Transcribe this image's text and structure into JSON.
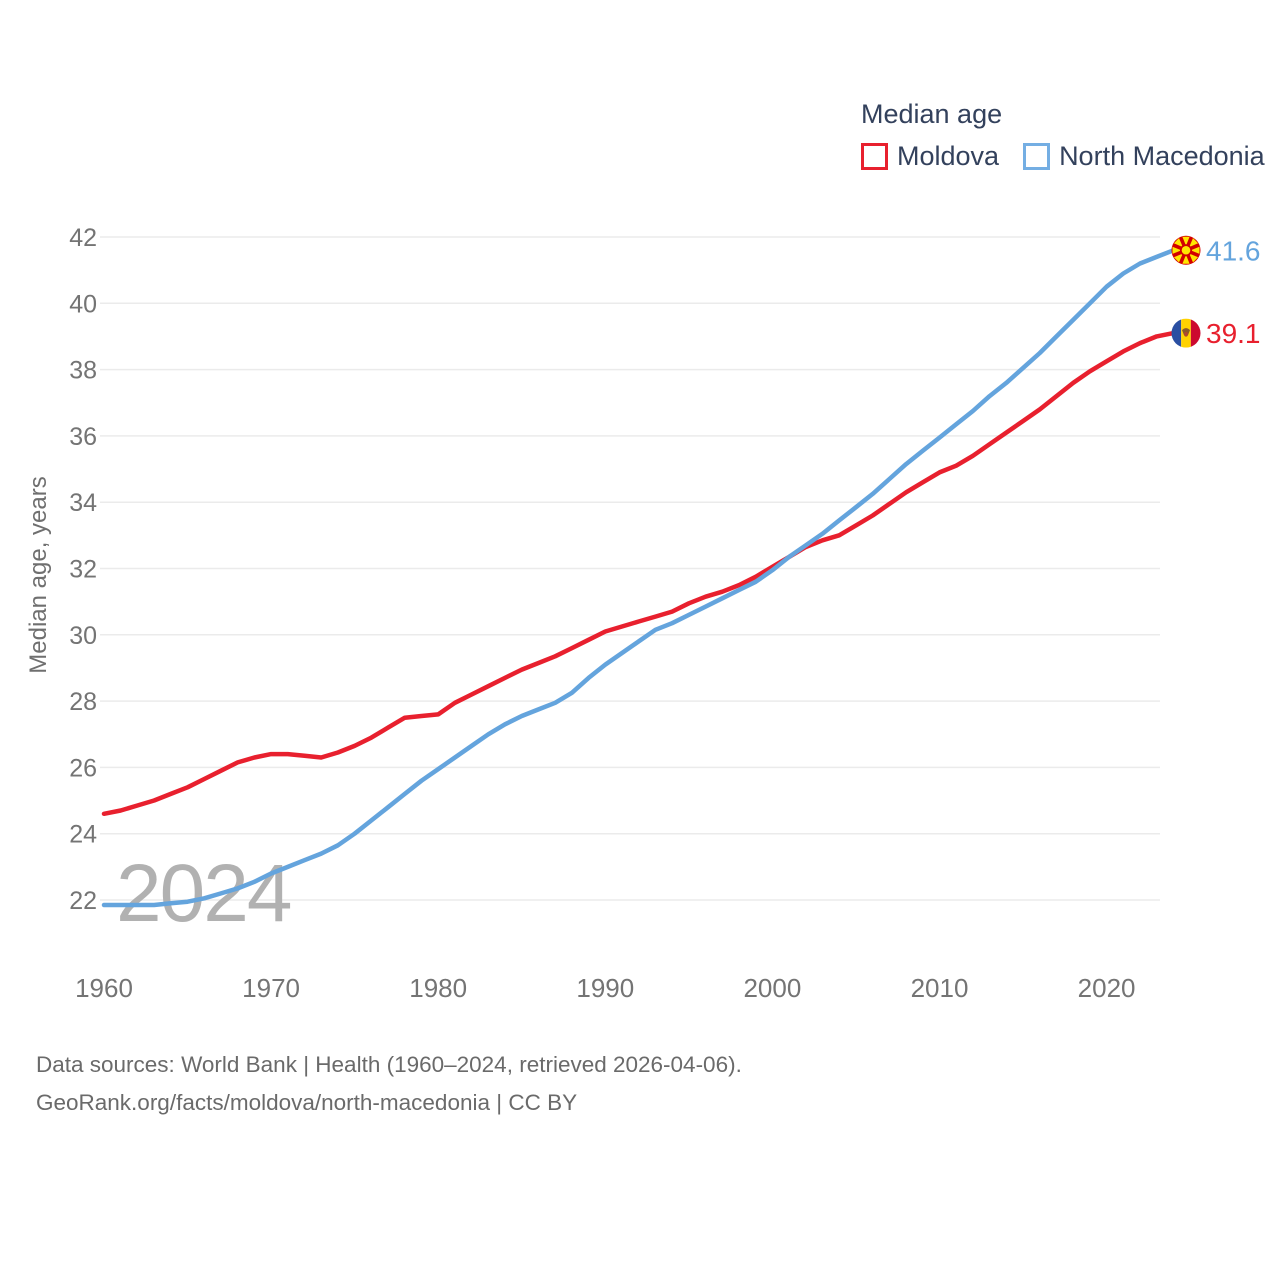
{
  "legend": {
    "title": "Median age",
    "series": [
      {
        "label": "Moldova",
        "color": "#e8202e"
      },
      {
        "label": "North Macedonia",
        "color": "#74aee3"
      }
    ]
  },
  "watermark": "2024",
  "end_labels": [
    {
      "series": "North Macedonia",
      "value": "41.6",
      "color": "#64a4dd",
      "flag": "north-macedonia-flag-icon"
    },
    {
      "series": "Moldova",
      "value": "39.1",
      "color": "#e8202e",
      "flag": "moldova-flag-icon"
    }
  ],
  "footer": {
    "line1": "Data sources: World Bank | Health (1960–2024, retrieved 2026-04-06).",
    "line2": "GeoRank.org/facts/moldova/north-macedonia | CC BY"
  },
  "colors": {
    "grid": "#ebebeb",
    "tick_text": "#747474",
    "axis_title_text": "#6f6f6f",
    "watermark": "#b1b1b1",
    "footer_text": "#6a6a6a",
    "legend_text": "#33415c"
  },
  "chart_data": {
    "type": "line",
    "title": "Median age",
    "xlabel": "",
    "ylabel": "Median age, years",
    "ylim": [
      21,
      43
    ],
    "yticks": [
      22,
      24,
      26,
      28,
      30,
      32,
      34,
      36,
      38,
      40,
      42
    ],
    "xticks": [
      1960,
      1970,
      1980,
      1990,
      2000,
      2010,
      2020
    ],
    "grid": true,
    "legend_position": "top-right",
    "x": [
      1960,
      1961,
      1962,
      1963,
      1964,
      1965,
      1966,
      1967,
      1968,
      1969,
      1970,
      1971,
      1972,
      1973,
      1974,
      1975,
      1976,
      1977,
      1978,
      1979,
      1980,
      1981,
      1982,
      1983,
      1984,
      1985,
      1986,
      1987,
      1988,
      1989,
      1990,
      1991,
      1992,
      1993,
      1994,
      1995,
      1996,
      1997,
      1998,
      1999,
      2000,
      2001,
      2002,
      2003,
      2004,
      2005,
      2006,
      2007,
      2008,
      2009,
      2010,
      2011,
      2012,
      2013,
      2014,
      2015,
      2016,
      2017,
      2018,
      2019,
      2020,
      2021,
      2022,
      2023,
      2024
    ],
    "series": [
      {
        "name": "Moldova",
        "color": "#e8202e",
        "end_value": 39.1,
        "values": [
          24.6,
          24.7,
          24.85,
          25.0,
          25.2,
          25.4,
          25.65,
          25.9,
          26.15,
          26.3,
          26.4,
          26.4,
          26.35,
          26.3,
          26.45,
          26.65,
          26.9,
          27.2,
          27.5,
          27.55,
          27.6,
          27.95,
          28.2,
          28.45,
          28.7,
          28.95,
          29.15,
          29.35,
          29.6,
          29.85,
          30.1,
          30.25,
          30.4,
          30.55,
          30.7,
          30.95,
          31.15,
          31.3,
          31.5,
          31.75,
          32.05,
          32.35,
          32.65,
          32.85,
          33.0,
          33.3,
          33.6,
          33.95,
          34.3,
          34.6,
          34.9,
          35.1,
          35.4,
          35.75,
          36.1,
          36.45,
          36.8,
          37.2,
          37.6,
          37.95,
          38.25,
          38.55,
          38.8,
          39.0,
          39.1
        ]
      },
      {
        "name": "North Macedonia",
        "color": "#64a4dd",
        "end_value": 41.6,
        "values": [
          21.85,
          21.85,
          21.85,
          21.85,
          21.9,
          21.95,
          22.05,
          22.2,
          22.35,
          22.55,
          22.8,
          23.0,
          23.2,
          23.4,
          23.65,
          24.0,
          24.4,
          24.8,
          25.2,
          25.6,
          25.95,
          26.3,
          26.65,
          27.0,
          27.3,
          27.55,
          27.75,
          27.95,
          28.25,
          28.7,
          29.1,
          29.45,
          29.8,
          30.15,
          30.35,
          30.6,
          30.85,
          31.1,
          31.35,
          31.6,
          31.95,
          32.35,
          32.7,
          33.05,
          33.45,
          33.85,
          34.25,
          34.7,
          35.15,
          35.55,
          35.95,
          36.35,
          36.75,
          37.2,
          37.6,
          38.05,
          38.5,
          39.0,
          39.5,
          40.0,
          40.5,
          40.9,
          41.2,
          41.4,
          41.6
        ]
      }
    ]
  }
}
